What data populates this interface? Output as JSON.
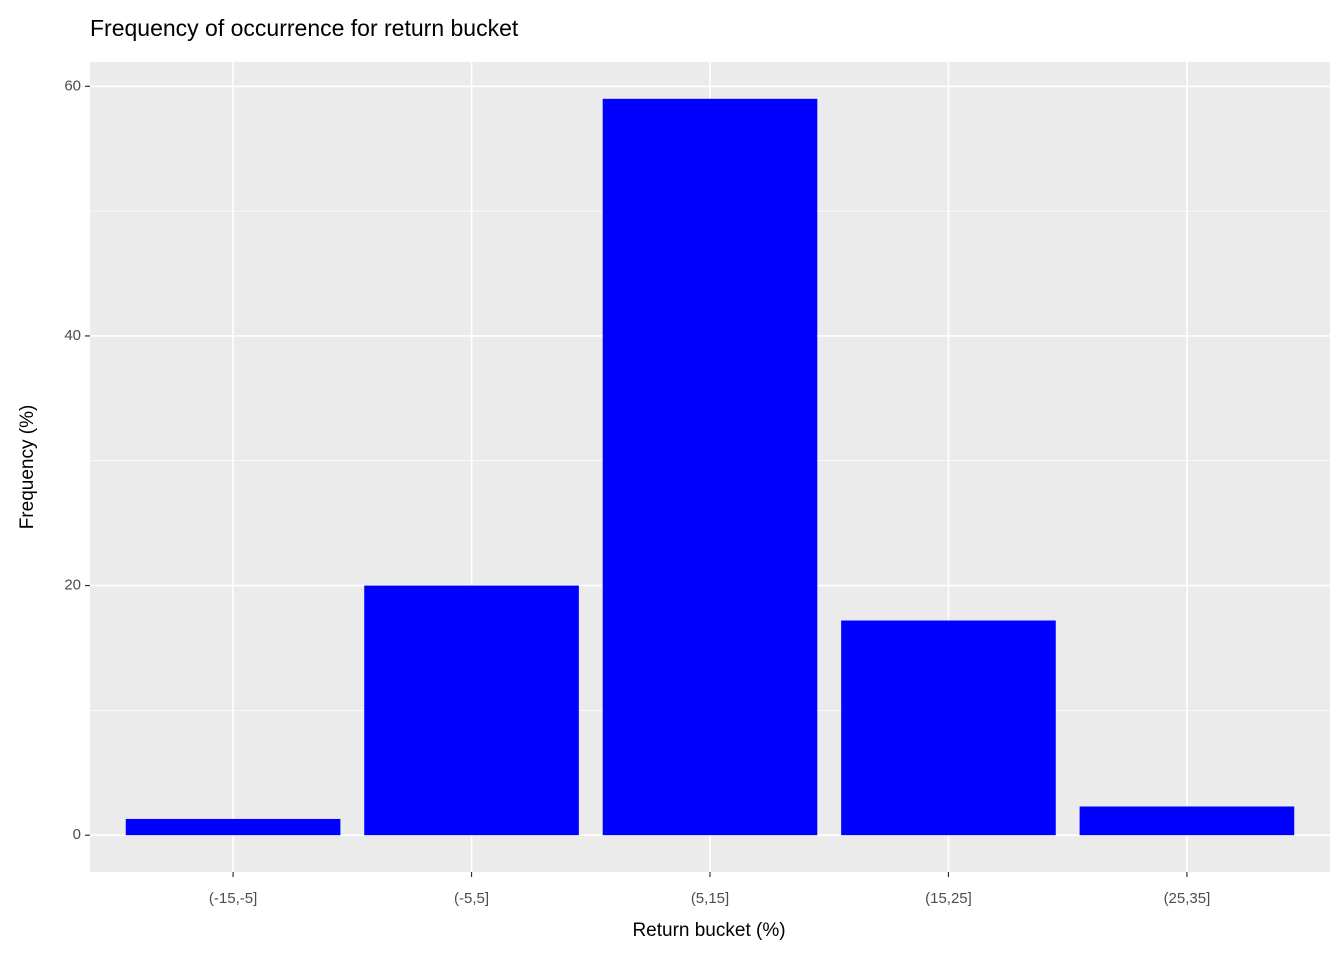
{
  "chart_data": {
    "type": "bar",
    "title": "Frequency of occurrence for return bucket",
    "x_label": "Return bucket (%)",
    "y_label": "Frequency (%)",
    "categories": [
      "(-15,-5]",
      "(-5,5]",
      "(5,15]",
      "(15,25]",
      "(25,35]"
    ],
    "values": [
      1.3,
      20,
      59,
      17.2,
      2.3
    ],
    "color": "#0000ff",
    "ylim": [
      -2.95,
      61.95
    ],
    "yticks": [
      0,
      20,
      40,
      60
    ],
    "minor_yticks": [
      10,
      30,
      50
    ],
    "grid": true
  }
}
